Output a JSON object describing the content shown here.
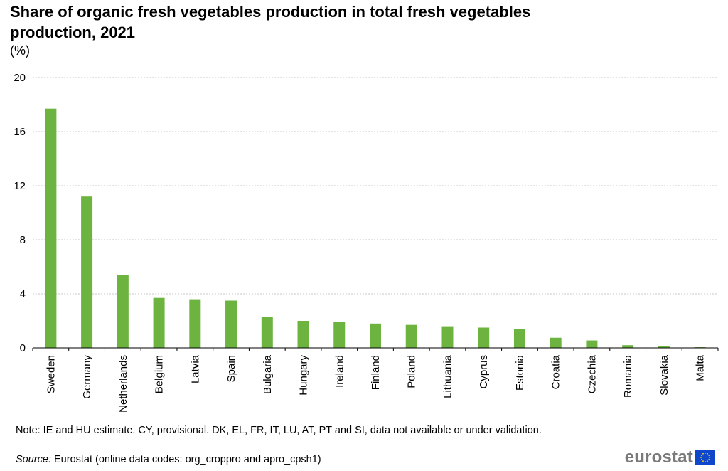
{
  "title": "Share of organic fresh vegetables production in total fresh vegetables production, 2021",
  "unit": "(%)",
  "note": "Note: IE and HU estimate. CY, provisional.  DK, EL, FR, IT, LU, AT, PT and SI, data not available or under validation.",
  "source_label": "Source:",
  "source_text": " Eurostat (online data codes: org_croppro and apro_cpsh1)",
  "logo_text": "eurostat",
  "colors": {
    "bar": "#6cb33f",
    "grid": "#c8c8c8",
    "axis": "#000000",
    "flag_blue": "#0e47cb",
    "flag_star": "#ffde00"
  },
  "chart_data": {
    "type": "bar",
    "title": "Share of organic fresh vegetables production in total fresh vegetables production, 2021",
    "ylabel": "(%)",
    "xlabel": "",
    "ylim": [
      0,
      20
    ],
    "yticks": [
      0,
      4,
      8,
      12,
      16,
      20
    ],
    "grid": true,
    "categories": [
      "Sweden",
      "Germany",
      "Netherlands",
      "Belgium",
      "Latvia",
      "Spain",
      "Bulgaria",
      "Hungary",
      "Ireland",
      "Finland",
      "Poland",
      "Lithuania",
      "Cyprus",
      "Estonia",
      "Croatia",
      "Czechia",
      "Romania",
      "Slovakia",
      "Malta"
    ],
    "values": [
      17.7,
      11.2,
      5.4,
      3.7,
      3.6,
      3.5,
      2.3,
      2.0,
      1.9,
      1.8,
      1.7,
      1.6,
      1.5,
      1.4,
      0.75,
      0.55,
      0.2,
      0.15,
      0.05
    ]
  }
}
